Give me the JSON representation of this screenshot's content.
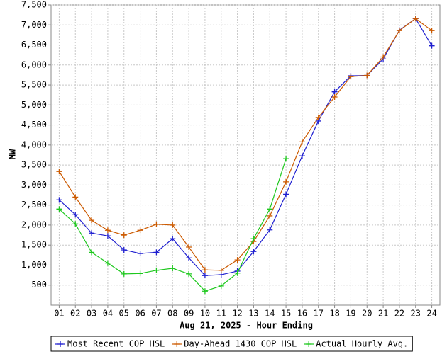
{
  "chart_data": {
    "type": "line",
    "x_label": "Aug 21, 2025 - Hour Ending",
    "y_label": "MW",
    "categories": [
      "01",
      "02",
      "03",
      "04",
      "05",
      "06",
      "07",
      "08",
      "09",
      "10",
      "11",
      "12",
      "13",
      "14",
      "15",
      "16",
      "17",
      "18",
      "19",
      "20",
      "21",
      "22",
      "23",
      "24"
    ],
    "series": [
      {
        "name": "Most Recent COP HSL",
        "color": "#1f1fd0",
        "values": [
          2630,
          2260,
          1800,
          1730,
          1380,
          1290,
          1320,
          1660,
          1180,
          740,
          760,
          850,
          1340,
          1880,
          2770,
          3730,
          4600,
          5330,
          5730,
          5740,
          6150,
          6870,
          7160,
          6480
        ]
      },
      {
        "name": "Day-Ahead 1430 COP HSL",
        "color": "#cc5a00",
        "values": [
          3340,
          2700,
          2120,
          1870,
          1750,
          1870,
          2020,
          2000,
          1450,
          880,
          870,
          1130,
          1590,
          2230,
          3080,
          4080,
          4690,
          5200,
          5710,
          5740,
          6200,
          6860,
          7160,
          6860
        ]
      },
      {
        "name": "Actual Hourly Avg.",
        "color": "#1ec81e",
        "values": [
          2400,
          2030,
          1320,
          1050,
          780,
          790,
          870,
          920,
          780,
          350,
          480,
          800,
          1660,
          2400,
          3660,
          null,
          null,
          null,
          null,
          null,
          null,
          null,
          null,
          null
        ]
      }
    ],
    "ylim": [
      0,
      7500
    ],
    "yticks": [
      500,
      {
        "value": 1000,
        "label": "1,000"
      },
      {
        "value": 1500,
        "label": "1,500"
      },
      {
        "value": 2000,
        "label": "2,000"
      },
      {
        "value": 2500,
        "label": "2,500"
      },
      {
        "value": 3000,
        "label": "3,000"
      },
      {
        "value": 3500,
        "label": "3,500"
      },
      {
        "value": 4000,
        "label": "4,000"
      },
      {
        "value": 4500,
        "label": "4,500"
      },
      {
        "value": 5000,
        "label": "5,000"
      },
      {
        "value": 5500,
        "label": "5,500"
      },
      {
        "value": 6000,
        "label": "6,000"
      },
      {
        "value": 6500,
        "label": "6,500"
      },
      {
        "value": 7000,
        "label": "7,000"
      },
      {
        "value": 7500,
        "label": "7,500"
      }
    ],
    "grid": true,
    "legend": "bottom"
  }
}
